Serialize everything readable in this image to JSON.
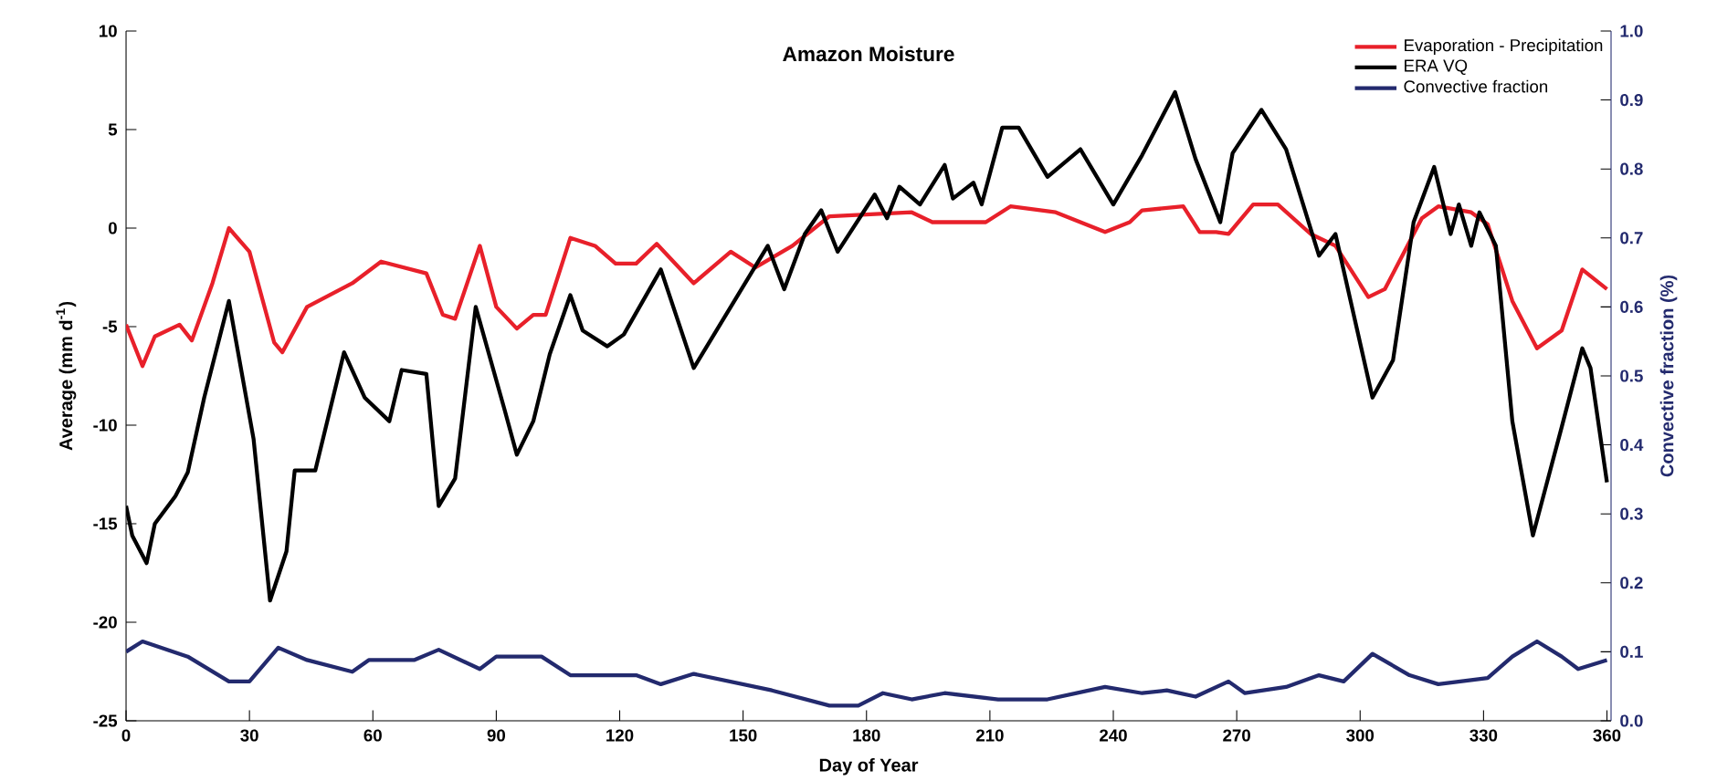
{
  "chart_data": {
    "type": "line",
    "title": "Amazon Moisture",
    "xlabel": "Day of Year",
    "ylabel": "Average (mm d$^{-1}$)",
    "y2label": "Convective fraction (%)",
    "xlim": [
      0,
      361
    ],
    "xticks": [
      0,
      30,
      60,
      90,
      120,
      150,
      180,
      210,
      240,
      270,
      300,
      330,
      360
    ],
    "ylim": [
      -25,
      10
    ],
    "yticks": [
      -25,
      -20,
      -15,
      -10,
      -5,
      0,
      5,
      10
    ],
    "y2lim": [
      0,
      1
    ],
    "y2ticks": [
      {
        "value": 0,
        "label": "0.0"
      },
      0.1,
      0.2,
      0.3,
      0.4,
      0.5,
      0.6,
      0.7,
      0.8,
      0.9,
      {
        "value": 1,
        "label": "1.0"
      }
    ],
    "legend": "top right",
    "grid": false,
    "marker": "none",
    "line_style": "solid",
    "series": [
      {
        "name": "Evaporation - Precipitation",
        "color": "#e8202a",
        "x": [
          0,
          4,
          7,
          13,
          16,
          21,
          25,
          30,
          36,
          38,
          44,
          55,
          62,
          73,
          77,
          80,
          86,
          90,
          95,
          99,
          102,
          108,
          114,
          119,
          124,
          129,
          138,
          147,
          153,
          162,
          171,
          191,
          196,
          209,
          215,
          226,
          238,
          244,
          247,
          257,
          261,
          265,
          268,
          274,
          280,
          288,
          294,
          302,
          306,
          315,
          319,
          327,
          331,
          337,
          343,
          349,
          354,
          360
        ],
        "values": [
          -4.9,
          -7.0,
          -5.5,
          -4.9,
          -5.7,
          -2.8,
          0,
          -1.2,
          -5.8,
          -6.3,
          -4,
          -2.8,
          -1.7,
          -2.3,
          -4.4,
          -4.6,
          -0.9,
          -4,
          -5.1,
          -4.4,
          -4.4,
          -0.5,
          -0.9,
          -1.8,
          -1.8,
          -0.8,
          -2.8,
          -1.2,
          -2,
          -0.9,
          0.6,
          0.8,
          0.3,
          0.3,
          1.1,
          0.8,
          -0.2,
          0.3,
          0.9,
          1.1,
          -0.2,
          -0.2,
          -0.3,
          1.2,
          1.2,
          -0.3,
          -0.9,
          -3.5,
          -3.1,
          0.5,
          1.1,
          0.8,
          0.2,
          -3.7,
          -6.1,
          -5.2,
          -2.1,
          -3.1
        ]
      },
      {
        "name": "ERA VQ",
        "color": "#000000",
        "x": [
          0,
          1.5,
          5,
          7,
          12,
          15,
          19,
          25,
          31,
          35,
          39,
          41,
          46,
          53,
          58,
          64,
          67,
          73,
          76,
          80,
          85,
          92,
          95,
          99,
          103,
          108,
          111,
          117,
          121,
          130,
          138,
          147,
          156,
          160,
          165,
          169,
          173,
          182,
          185,
          188,
          193,
          199,
          201,
          206,
          208,
          213,
          217,
          224,
          232,
          240,
          247,
          255,
          260,
          266,
          269,
          276,
          282,
          290,
          294,
          303,
          308,
          313,
          318,
          322,
          324,
          327,
          329,
          333,
          337,
          342,
          349,
          354,
          356,
          360
        ],
        "values": [
          -14.1,
          -15.6,
          -17,
          -15,
          -13.6,
          -12.4,
          -8.6,
          -3.7,
          -10.7,
          -18.9,
          -16.4,
          -12.3,
          -12.3,
          -6.3,
          -8.6,
          -9.8,
          -7.2,
          -7.4,
          -14.1,
          -12.7,
          -4,
          -9.2,
          -11.5,
          -9.8,
          -6.4,
          -3.4,
          -5.2,
          -6,
          -5.4,
          -2.1,
          -7.1,
          -4,
          -0.9,
          -3.1,
          -0.3,
          0.9,
          -1.2,
          1.7,
          0.5,
          2.1,
          1.2,
          3.2,
          1.5,
          2.3,
          1.2,
          5.1,
          5.1,
          2.6,
          4,
          1.2,
          3.7,
          6.9,
          3.5,
          0.3,
          3.8,
          6,
          4,
          -1.4,
          -0.3,
          -8.6,
          -6.7,
          0.3,
          3.1,
          -0.3,
          1.2,
          -0.9,
          0.8,
          -0.9,
          -9.8,
          -15.6,
          -10.1,
          -6.1,
          -7.1,
          -12.9
        ]
      },
      {
        "name": "Convective fraction",
        "color": "#232a6e",
        "axis": "y2",
        "x": [
          0,
          4,
          15,
          25,
          30,
          37,
          44,
          55,
          59,
          70,
          76,
          86,
          90,
          101,
          108,
          124,
          130,
          138,
          157,
          171,
          178,
          184,
          191,
          199,
          212,
          224,
          238,
          247,
          253,
          260,
          268,
          272,
          282,
          290,
          296,
          303,
          312,
          319,
          331,
          337,
          343,
          349,
          353,
          360
        ],
        "values": [
          0.1,
          0.115,
          0.093,
          0.057,
          0.057,
          0.106,
          0.088,
          0.071,
          0.088,
          0.088,
          0.103,
          0.075,
          0.093,
          0.093,
          0.066,
          0.066,
          0.053,
          0.068,
          0.044,
          0.022,
          0.022,
          0.04,
          0.031,
          0.04,
          0.031,
          0.031,
          0.049,
          0.04,
          0.044,
          0.035,
          0.057,
          0.04,
          0.049,
          0.066,
          0.057,
          0.097,
          0.066,
          0.053,
          0.062,
          0.093,
          0.115,
          0.093,
          0.075,
          0.088
        ]
      }
    ]
  }
}
